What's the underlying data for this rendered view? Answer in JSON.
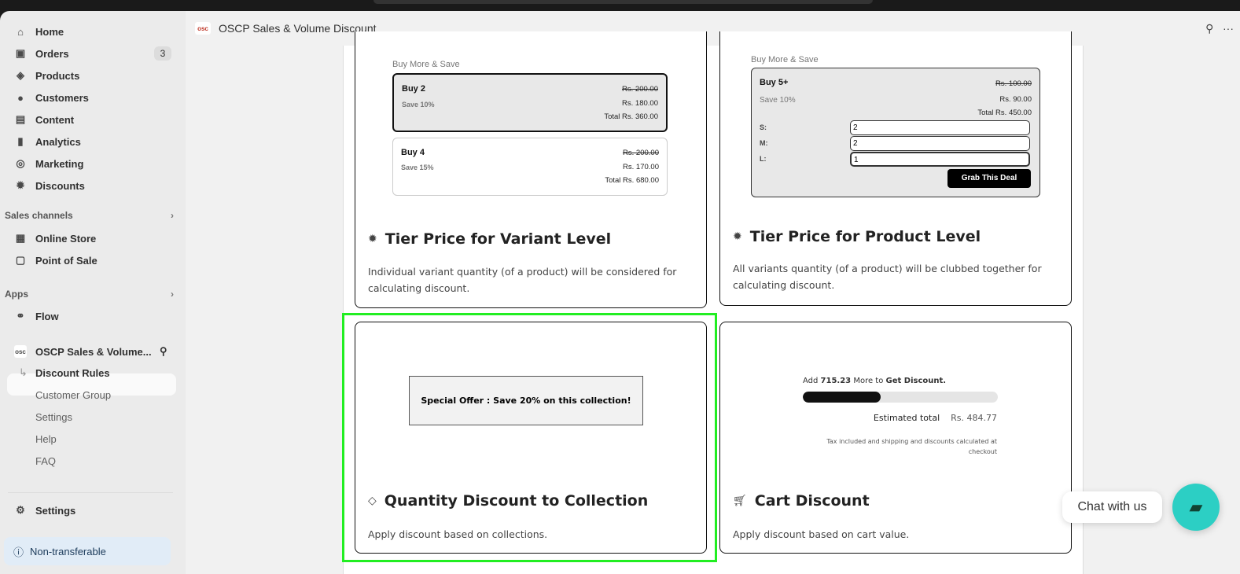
{
  "app": {
    "title": "OSCP Sales & Volume Discount",
    "logo_text": "osc"
  },
  "sidebar": {
    "items": [
      {
        "label": "Home",
        "icon": "home-icon"
      },
      {
        "label": "Orders",
        "icon": "inbox-icon",
        "badge": "3"
      },
      {
        "label": "Products",
        "icon": "tag-icon"
      },
      {
        "label": "Customers",
        "icon": "person-icon"
      },
      {
        "label": "Content",
        "icon": "image-icon"
      },
      {
        "label": "Analytics",
        "icon": "bar-chart-icon"
      },
      {
        "label": "Marketing",
        "icon": "target-icon"
      },
      {
        "label": "Discounts",
        "icon": "discount-icon"
      }
    ],
    "sales_channels_label": "Sales channels",
    "channels": [
      {
        "label": "Online Store"
      },
      {
        "label": "Point of Sale"
      }
    ],
    "apps_label": "Apps",
    "apps": [
      {
        "label": "Flow"
      }
    ],
    "app_name": "OSCP Sales & Volume...",
    "app_sub": [
      "Discount Rules",
      "Customer Group",
      "Settings",
      "Help",
      "FAQ"
    ],
    "settings": "Settings",
    "non_transferable": "Non-transferable"
  },
  "cards": {
    "variant": {
      "buy_more": "Buy More & Save",
      "tiers": [
        {
          "title": "Buy 2",
          "save": "Save 10%",
          "orig": "Rs. 200.00",
          "price": "Rs. 180.00",
          "total": "Total Rs. 360.00"
        },
        {
          "title": "Buy 4",
          "save": "Save 15%",
          "orig": "Rs. 200.00",
          "price": "Rs. 170.00",
          "total": "Total Rs. 680.00"
        }
      ],
      "title": "Tier Price for Variant Level",
      "desc": "Individual variant quantity (of a product) will be considered for calculating discount."
    },
    "product": {
      "buy_more": "Buy More & Save",
      "tier": {
        "title": "Buy 5+",
        "save": "Save 10%",
        "orig": "Rs. 100.00",
        "price": "Rs. 90.00",
        "total": "Total Rs. 450.00"
      },
      "sizes": [
        {
          "label": "S:",
          "value": "2"
        },
        {
          "label": "M:",
          "value": "2"
        },
        {
          "label": "L:",
          "value": "1"
        }
      ],
      "button": "Grab This Deal",
      "title": "Tier Price for Product Level",
      "desc": "All variants quantity (of a product) will be clubbed together for calculating discount."
    },
    "collection": {
      "offer": "Special Offer : Save 20% on this collection!",
      "title": "Quantity Discount to Collection",
      "desc": "Apply discount based on collections."
    },
    "cart": {
      "add_prefix": "Add ",
      "amount": "715.23",
      "add_mid": " More to ",
      "add_suffix": "Get Discount.",
      "progress_percent": 40,
      "est_label": "Estimated total",
      "est_value": "Rs. 484.77",
      "tax_note": "Tax included and shipping and discounts calculated at checkout",
      "title": "Cart Discount",
      "desc": "Apply discount based on cart value."
    }
  },
  "chat": {
    "label": "Chat with us"
  },
  "colors": {
    "highlight": "#22ee22",
    "chat": "#2ccfc4"
  }
}
